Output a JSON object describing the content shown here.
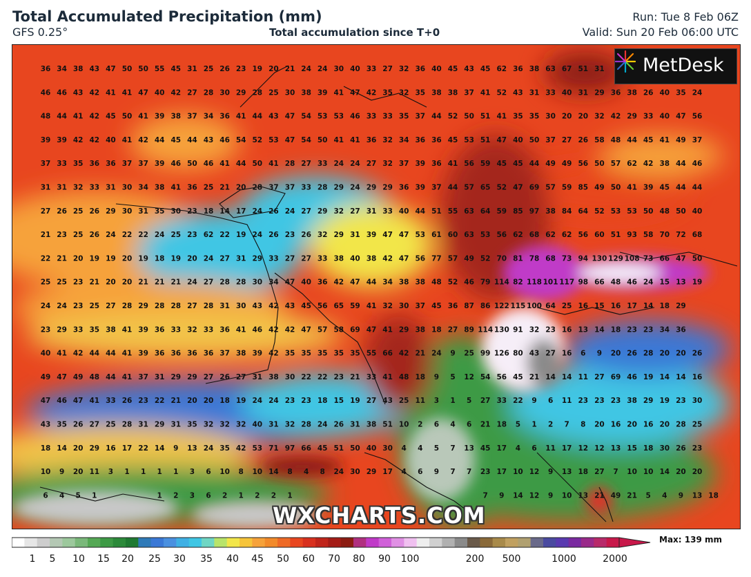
{
  "header": {
    "title": "Total Accumulated Precipitation (mm)",
    "model": "GFS 0.25°",
    "subtitle": "Total accumulation since T+0",
    "run": "Run: Tue 8 Feb 06Z",
    "valid": "Valid: Sun 20 Feb 06:00 UTC"
  },
  "logo": {
    "text": "MetDesk"
  },
  "watermark": "WXCHARTS.COM",
  "legend": {
    "max_label": "Max: 139 mm",
    "ticks": [
      "1",
      "5",
      "10",
      "15",
      "20",
      "25",
      "30",
      "35",
      "40",
      "45",
      "50",
      "60",
      "70",
      "80",
      "90",
      "100",
      "200",
      "500",
      "1000",
      "2000"
    ]
  },
  "colors": {
    "grey": "#c8c8c8",
    "green": "#3d9a45",
    "blue": "#3a78d6",
    "cyan": "#3fc6e4",
    "yellow": "#f2e64a",
    "orange": "#f28a2a",
    "red": "#e0332a",
    "darkred": "#8c1c12",
    "magenta": "#c03ac8",
    "white": "#f6eef8"
  },
  "grid_values": [
    [
      "36",
      "34",
      "38",
      "43",
      "47",
      "50",
      "50",
      "55",
      "45",
      "31",
      "25",
      "26",
      "23",
      "19",
      "20",
      "21",
      "24",
      "24",
      "30",
      "40",
      "33",
      "27",
      "32",
      "36",
      "40",
      "45",
      "43",
      "45",
      "62",
      "36",
      "38",
      "63",
      "67",
      "51",
      "31"
    ],
    [
      "46",
      "46",
      "43",
      "42",
      "41",
      "41",
      "47",
      "40",
      "42",
      "27",
      "28",
      "30",
      "29",
      "28",
      "25",
      "30",
      "38",
      "39",
      "41",
      "47",
      "42",
      "35",
      "32",
      "35",
      "38",
      "38",
      "37",
      "41",
      "52",
      "43",
      "31",
      "33",
      "40",
      "31",
      "29",
      "36",
      "38",
      "26",
      "40",
      "35",
      "24"
    ],
    [
      "48",
      "44",
      "41",
      "42",
      "45",
      "50",
      "41",
      "39",
      "38",
      "37",
      "34",
      "36",
      "41",
      "44",
      "43",
      "47",
      "54",
      "53",
      "53",
      "46",
      "33",
      "33",
      "35",
      "37",
      "44",
      "52",
      "50",
      "51",
      "41",
      "35",
      "35",
      "30",
      "20",
      "20",
      "32",
      "42",
      "29",
      "33",
      "40",
      "47",
      "56"
    ],
    [
      "39",
      "39",
      "42",
      "42",
      "40",
      "41",
      "42",
      "44",
      "45",
      "44",
      "43",
      "46",
      "54",
      "52",
      "53",
      "47",
      "54",
      "50",
      "41",
      "41",
      "36",
      "32",
      "34",
      "36",
      "36",
      "45",
      "53",
      "51",
      "47",
      "40",
      "50",
      "37",
      "27",
      "26",
      "58",
      "48",
      "44",
      "45",
      "41",
      "49",
      "37"
    ],
    [
      "37",
      "33",
      "35",
      "36",
      "36",
      "37",
      "37",
      "39",
      "46",
      "50",
      "46",
      "41",
      "44",
      "50",
      "41",
      "28",
      "27",
      "33",
      "24",
      "24",
      "27",
      "32",
      "37",
      "39",
      "36",
      "41",
      "56",
      "59",
      "45",
      "45",
      "44",
      "49",
      "49",
      "56",
      "50",
      "57",
      "62",
      "42",
      "38",
      "44",
      "46"
    ],
    [
      "31",
      "31",
      "32",
      "33",
      "31",
      "30",
      "34",
      "38",
      "41",
      "36",
      "25",
      "21",
      "20",
      "28",
      "37",
      "37",
      "33",
      "28",
      "29",
      "24",
      "29",
      "29",
      "36",
      "39",
      "37",
      "44",
      "57",
      "65",
      "52",
      "47",
      "69",
      "57",
      "59",
      "85",
      "49",
      "50",
      "41",
      "39",
      "45",
      "44",
      "44"
    ],
    [
      "27",
      "26",
      "25",
      "26",
      "29",
      "30",
      "31",
      "35",
      "30",
      "23",
      "18",
      "14",
      "17",
      "24",
      "26",
      "24",
      "27",
      "29",
      "32",
      "27",
      "31",
      "33",
      "40",
      "44",
      "51",
      "55",
      "63",
      "64",
      "59",
      "85",
      "97",
      "38",
      "84",
      "64",
      "52",
      "53",
      "53",
      "50",
      "48",
      "50",
      "40"
    ],
    [
      "21",
      "23",
      "25",
      "26",
      "24",
      "22",
      "22",
      "24",
      "25",
      "23",
      "62",
      "22",
      "19",
      "24",
      "26",
      "23",
      "26",
      "32",
      "29",
      "31",
      "39",
      "47",
      "47",
      "53",
      "61",
      "60",
      "63",
      "53",
      "56",
      "62",
      "68",
      "62",
      "62",
      "56",
      "60",
      "51",
      "93",
      "58",
      "70",
      "72",
      "68"
    ],
    [
      "22",
      "21",
      "20",
      "19",
      "19",
      "20",
      "19",
      "18",
      "19",
      "20",
      "24",
      "27",
      "31",
      "29",
      "33",
      "27",
      "27",
      "33",
      "38",
      "40",
      "38",
      "42",
      "47",
      "56",
      "77",
      "57",
      "49",
      "52",
      "70",
      "81",
      "78",
      "68",
      "73",
      "94",
      "130",
      "129",
      "108",
      "73",
      "66",
      "47",
      "50"
    ],
    [
      "25",
      "25",
      "23",
      "21",
      "20",
      "20",
      "21",
      "21",
      "21",
      "24",
      "27",
      "28",
      "28",
      "30",
      "34",
      "47",
      "40",
      "36",
      "42",
      "47",
      "44",
      "34",
      "38",
      "38",
      "48",
      "52",
      "46",
      "79",
      "114",
      "82",
      "118",
      "101",
      "117",
      "98",
      "66",
      "48",
      "46",
      "24",
      "15",
      "13",
      "19"
    ],
    [
      "24",
      "24",
      "23",
      "25",
      "27",
      "28",
      "29",
      "28",
      "28",
      "27",
      "28",
      "31",
      "30",
      "43",
      "42",
      "43",
      "45",
      "56",
      "65",
      "59",
      "41",
      "32",
      "30",
      "37",
      "45",
      "36",
      "87",
      "86",
      "122",
      "115",
      "100",
      "64",
      "25",
      "16",
      "15",
      "16",
      "17",
      "14",
      "18",
      "29"
    ],
    [
      "23",
      "29",
      "33",
      "35",
      "38",
      "41",
      "39",
      "36",
      "33",
      "32",
      "33",
      "36",
      "41",
      "46",
      "42",
      "42",
      "47",
      "57",
      "58",
      "69",
      "47",
      "41",
      "29",
      "38",
      "18",
      "27",
      "89",
      "114",
      "130",
      "91",
      "32",
      "23",
      "16",
      "13",
      "14",
      "18",
      "23",
      "23",
      "34",
      "36"
    ],
    [
      "40",
      "41",
      "42",
      "44",
      "44",
      "41",
      "39",
      "36",
      "36",
      "36",
      "36",
      "37",
      "38",
      "39",
      "42",
      "35",
      "35",
      "35",
      "35",
      "35",
      "55",
      "66",
      "42",
      "21",
      "24",
      "9",
      "25",
      "99",
      "126",
      "80",
      "43",
      "27",
      "16",
      "6",
      "9",
      "20",
      "26",
      "28",
      "20",
      "20",
      "26"
    ],
    [
      "49",
      "47",
      "49",
      "48",
      "44",
      "41",
      "37",
      "31",
      "29",
      "29",
      "27",
      "26",
      "27",
      "31",
      "38",
      "30",
      "22",
      "22",
      "23",
      "21",
      "33",
      "41",
      "48",
      "18",
      "9",
      "5",
      "12",
      "54",
      "56",
      "45",
      "21",
      "14",
      "14",
      "11",
      "27",
      "69",
      "46",
      "19",
      "14",
      "14",
      "16"
    ],
    [
      "47",
      "46",
      "47",
      "41",
      "33",
      "26",
      "23",
      "22",
      "21",
      "20",
      "20",
      "18",
      "19",
      "24",
      "24",
      "23",
      "23",
      "18",
      "15",
      "19",
      "27",
      "43",
      "25",
      "11",
      "3",
      "1",
      "5",
      "27",
      "33",
      "22",
      "9",
      "6",
      "11",
      "23",
      "23",
      "23",
      "38",
      "29",
      "19",
      "23",
      "30"
    ],
    [
      "43",
      "35",
      "26",
      "27",
      "25",
      "28",
      "31",
      "29",
      "31",
      "35",
      "32",
      "32",
      "32",
      "40",
      "31",
      "32",
      "28",
      "24",
      "26",
      "31",
      "38",
      "51",
      "10",
      "2",
      "6",
      "4",
      "6",
      "21",
      "18",
      "5",
      "1",
      "2",
      "7",
      "8",
      "20",
      "16",
      "20",
      "16",
      "20",
      "28",
      "25"
    ],
    [
      "18",
      "14",
      "20",
      "29",
      "16",
      "17",
      "22",
      "14",
      "9",
      "13",
      "24",
      "35",
      "42",
      "53",
      "71",
      "97",
      "66",
      "45",
      "51",
      "50",
      "40",
      "30",
      "4",
      "4",
      "5",
      "7",
      "13",
      "45",
      "17",
      "4",
      "6",
      "11",
      "17",
      "12",
      "12",
      "13",
      "15",
      "18",
      "30",
      "26",
      "23"
    ],
    [
      "10",
      "9",
      "20",
      "11",
      "3",
      "1",
      "1",
      "1",
      "1",
      "3",
      "6",
      "10",
      "8",
      "10",
      "14",
      "8",
      "4",
      "8",
      "24",
      "30",
      "29",
      "17",
      "4",
      "6",
      "9",
      "7",
      "7",
      "23",
      "17",
      "10",
      "12",
      "9",
      "13",
      "18",
      "27",
      "7",
      "10",
      "10",
      "14",
      "20",
      "20"
    ],
    [
      "6",
      "4",
      "5",
      "1",
      "",
      "",
      "",
      "1",
      "2",
      "3",
      "6",
      "2",
      "1",
      "2",
      "2",
      "1",
      "",
      "",
      "",
      "",
      "",
      "",
      "",
      "",
      "",
      "",
      "",
      "7",
      "9",
      "14",
      "12",
      "9",
      "10",
      "13",
      "21",
      "49",
      "21",
      "5",
      "4",
      "9",
      "13",
      "18"
    ]
  ]
}
